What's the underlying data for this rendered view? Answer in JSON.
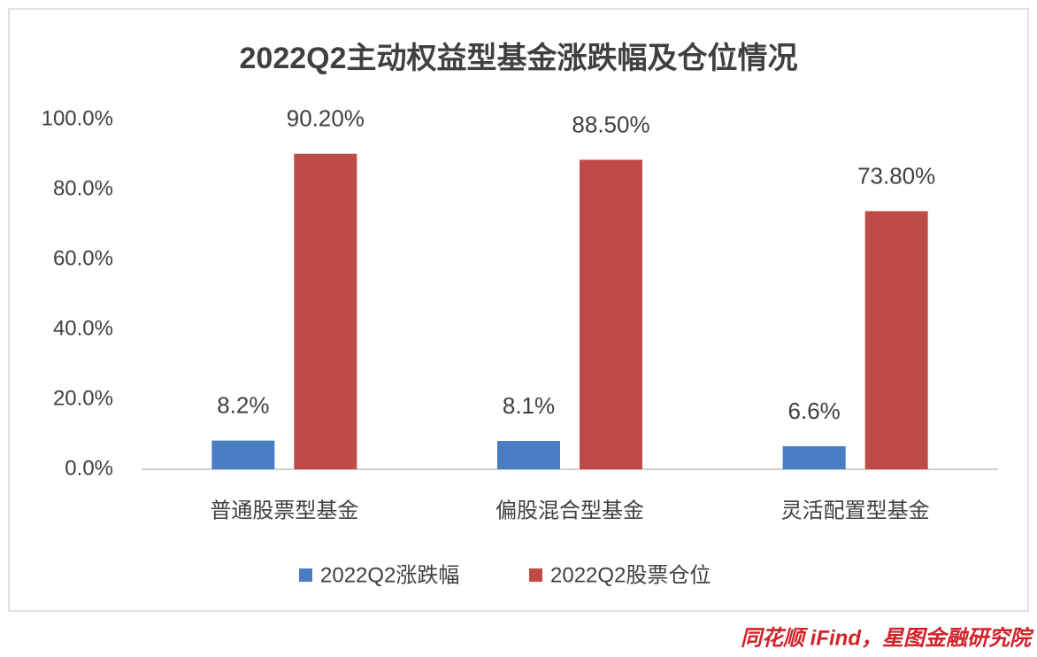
{
  "chart_data": {
    "type": "bar",
    "title": "2022Q2主动权益型基金涨跌幅及仓位情况",
    "categories": [
      "普通股票型基金",
      "偏股混合型基金",
      "灵活配置型基金"
    ],
    "series": [
      {
        "name": "2022Q2涨跌幅",
        "color": "#4a7ec4",
        "values": [
          8.2,
          8.1,
          6.6
        ],
        "value_labels": [
          "8.2%",
          "8.1%",
          "6.6%"
        ]
      },
      {
        "name": "2022Q2股票仓位",
        "color": "#be4b48",
        "values": [
          90.2,
          88.5,
          73.8
        ],
        "value_labels": [
          "90.20%",
          "88.50%",
          "73.80%"
        ]
      }
    ],
    "ylim": [
      0,
      100
    ],
    "yticks": [
      {
        "value": 0,
        "label": "0.0%"
      },
      {
        "value": 20,
        "label": "20.0%"
      },
      {
        "value": 40,
        "label": "40.0%"
      },
      {
        "value": 60,
        "label": "60.0%"
      },
      {
        "value": 80,
        "label": "80.0%"
      },
      {
        "value": 100,
        "label": "100.0%"
      }
    ],
    "grid": false,
    "legend": "bottom",
    "source": "同花顺 iFind，星图金融研究院"
  }
}
